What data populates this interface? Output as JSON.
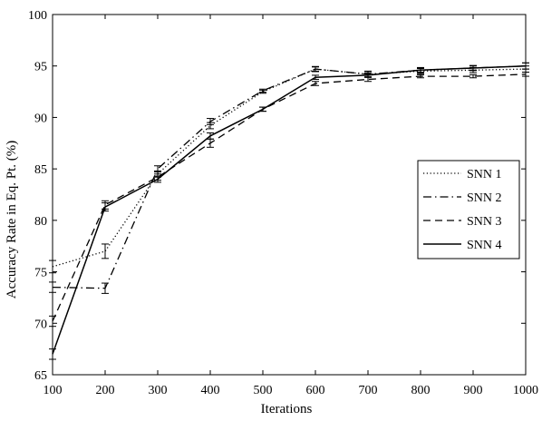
{
  "chart_data": {
    "type": "line",
    "title": "",
    "xlabel": "Iterations",
    "ylabel": "Accuracy Rate in Eq. Pt. (%)",
    "x": [
      100,
      200,
      300,
      400,
      500,
      600,
      700,
      800,
      900,
      1000
    ],
    "xlim": [
      100,
      1000
    ],
    "ylim": [
      65,
      100
    ],
    "xticks": [
      "100",
      "200",
      "300",
      "400",
      "500",
      "600",
      "700",
      "800",
      "900",
      "1000"
    ],
    "yticks": [
      "65",
      "70",
      "75",
      "80",
      "85",
      "90",
      "95",
      "100"
    ],
    "grid": false,
    "legend_position": "right",
    "series": [
      {
        "name": "SNN 1",
        "style": "dotted",
        "values": [
          75.5,
          77.0,
          84.5,
          89.2,
          92.5,
          94.7,
          94.2,
          94.5,
          94.6,
          94.7
        ],
        "error": [
          0.6,
          0.7,
          0.3,
          0.3,
          0.15,
          0.25,
          0.3,
          0.25,
          0.25,
          0.3
        ]
      },
      {
        "name": "SNN 2",
        "style": "dashdot",
        "values": [
          73.5,
          73.4,
          85.0,
          89.6,
          92.6,
          94.7,
          94.2,
          94.6,
          94.8,
          95.0
        ],
        "error": [
          0.5,
          0.5,
          0.3,
          0.3,
          0.15,
          0.2,
          0.25,
          0.25,
          0.25,
          0.3
        ]
      },
      {
        "name": "SNN 3",
        "style": "dashed",
        "values": [
          70.2,
          81.5,
          84.2,
          87.5,
          90.8,
          93.3,
          93.7,
          94.0,
          94.0,
          94.2
        ],
        "error": [
          0.5,
          0.4,
          0.3,
          0.4,
          0.2,
          0.2,
          0.2,
          0.15,
          0.15,
          0.2
        ]
      },
      {
        "name": "SNN 4",
        "style": "solid",
        "values": [
          67.0,
          81.3,
          84.0,
          88.2,
          90.8,
          93.9,
          94.1,
          94.6,
          94.8,
          95.0
        ],
        "error": [
          0.5,
          0.4,
          0.3,
          0.3,
          0.2,
          0.2,
          0.2,
          0.2,
          0.2,
          0.3
        ]
      }
    ]
  }
}
